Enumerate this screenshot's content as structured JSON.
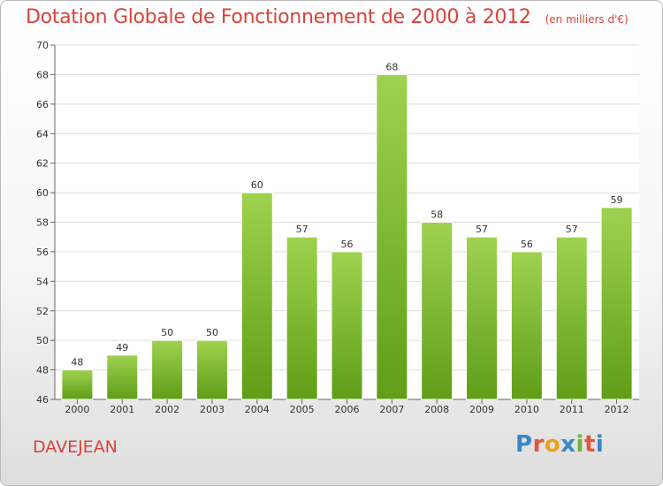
{
  "header": {
    "title": "Dotation Globale de Fonctionnement de 2000 à 2012",
    "unit": "(en milliers d'€)"
  },
  "footer": {
    "commune": "DAVEJEAN",
    "logo_text": "Proxiti"
  },
  "colors": {
    "accent": "#d9443b",
    "bar_top": "#9ed24f",
    "bar_bottom": "#5f9e16",
    "logo_letters": [
      "#3a86c8",
      "#e0563b",
      "#e8a320",
      "#3a86c8",
      "#6fb33a",
      "#e0563b",
      "#3a86c8"
    ]
  },
  "chart_data": {
    "type": "bar",
    "title": "Dotation Globale de Fonctionnement de 2000 à 2012",
    "subtitle": "(en milliers d'€)",
    "categories": [
      "2000",
      "2001",
      "2002",
      "2003",
      "2004",
      "2005",
      "2006",
      "2007",
      "2008",
      "2009",
      "2010",
      "2011",
      "2012"
    ],
    "values": [
      48,
      49,
      50,
      50,
      60,
      57,
      56,
      68,
      58,
      57,
      56,
      57,
      59
    ],
    "ylim": [
      46,
      70
    ],
    "yticks": [
      46,
      48,
      50,
      52,
      54,
      56,
      58,
      60,
      62,
      64,
      66,
      68,
      70
    ],
    "grid": true,
    "legend": "none",
    "data_labels": true
  }
}
